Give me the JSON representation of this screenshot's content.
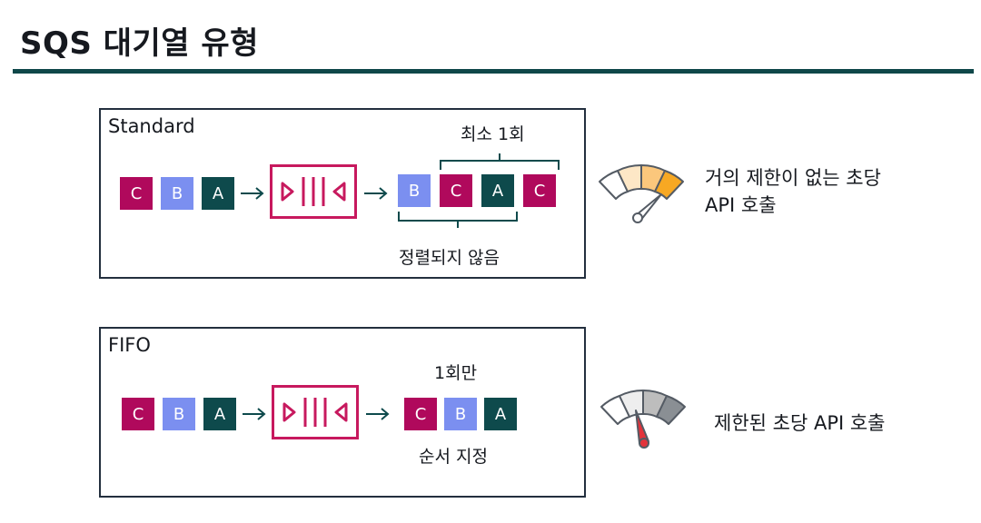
{
  "title": "SQS 대기열 유형",
  "colors": {
    "rule": "#0f4749",
    "message_c": "#b0095c",
    "message_b": "#7b8ff0",
    "message_a": "#0e4a4c",
    "queue_icon": "#c7195e",
    "gauge_standard_needle": "#ffffff",
    "gauge_fifo_needle": "#e2333b"
  },
  "standard": {
    "label": "Standard",
    "input_messages": [
      "C",
      "B",
      "A"
    ],
    "output_messages": [
      "B",
      "C",
      "A",
      "C"
    ],
    "top_caption": "최소 1회",
    "bottom_caption": "정렬되지 않음",
    "gauge_icon": "speedometer-high-icon",
    "gauge_line1": "거의 제한이 없는 초당",
    "gauge_line2": "API 호출"
  },
  "fifo": {
    "label": "FIFO",
    "input_messages": [
      "C",
      "B",
      "A"
    ],
    "output_messages": [
      "C",
      "B",
      "A"
    ],
    "top_caption": "1회만",
    "bottom_caption": "순서 지정",
    "gauge_icon": "speedometer-limited-icon",
    "gauge_line1": "제한된 초당 API 호출"
  }
}
